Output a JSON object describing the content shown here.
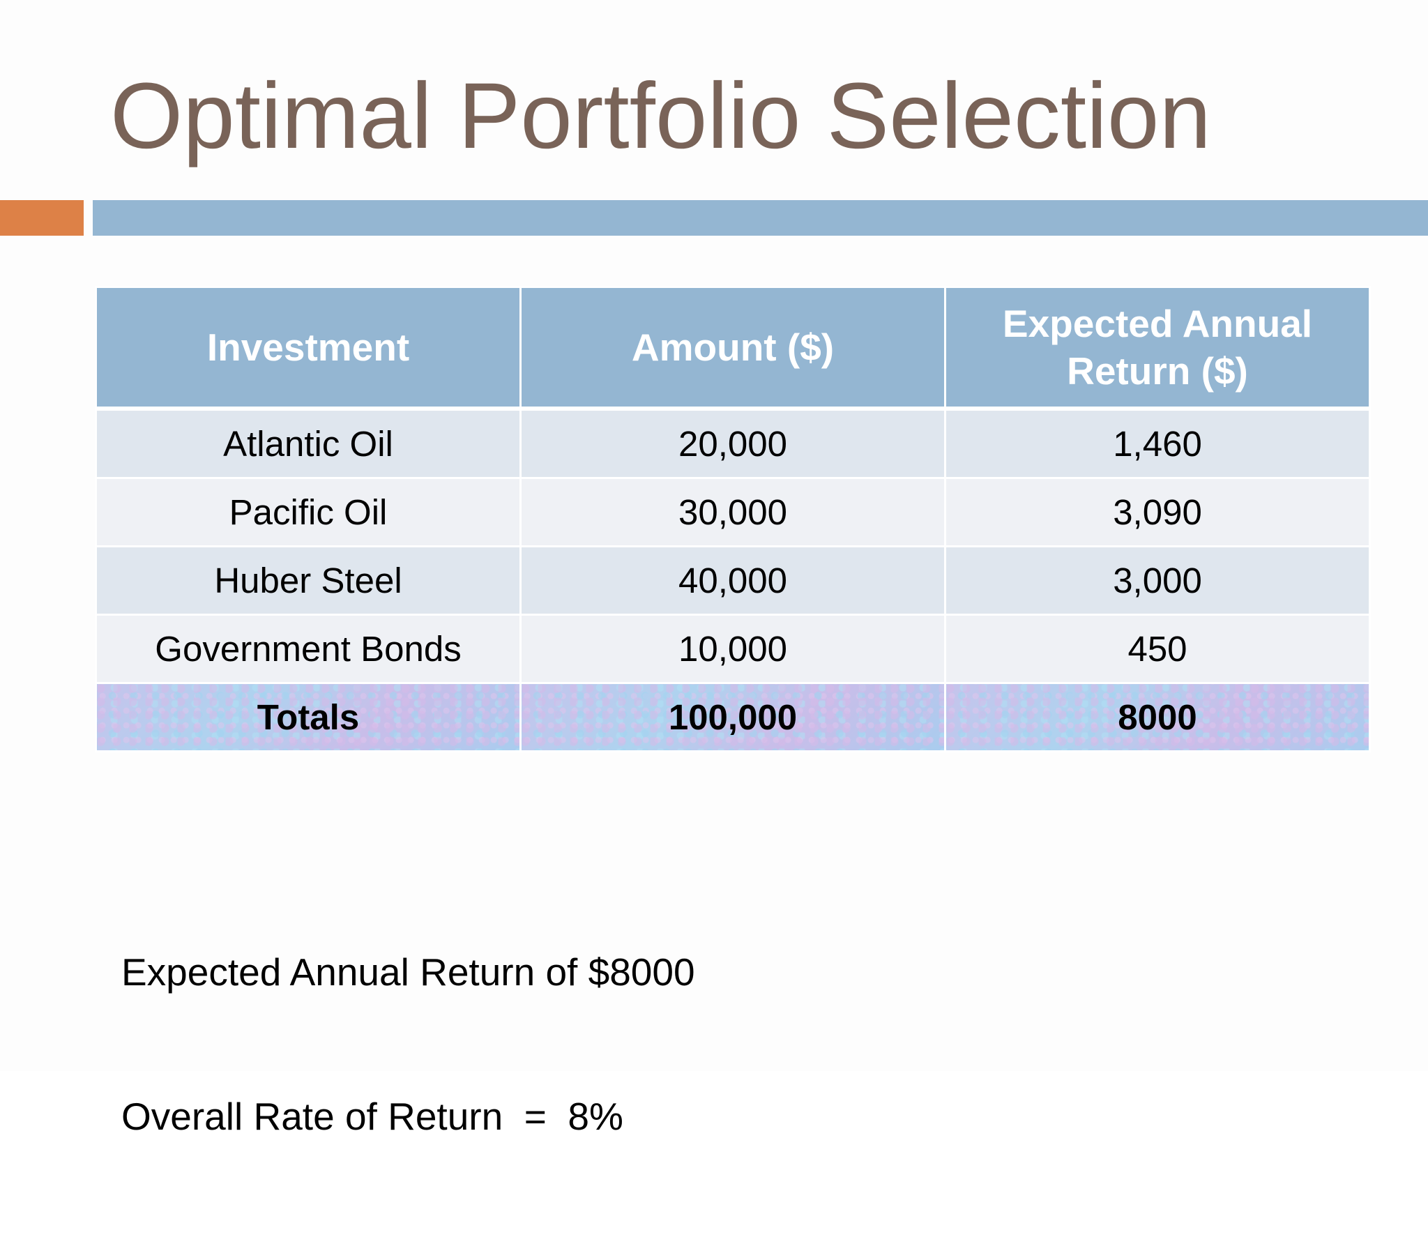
{
  "slide": {
    "title": "Optimal Portfolio Selection",
    "colors": {
      "title": "#796358",
      "accent_orange": "#dd8147",
      "accent_blue": "#94b6d2",
      "header_fill": "#94b6d2",
      "row_odd": "#dfe6ee",
      "row_even": "#eff1f5"
    }
  },
  "table": {
    "headers": [
      "Investment",
      "Amount ($)",
      "Expected Annual Return ($)"
    ],
    "rows": [
      {
        "investment": "Atlantic Oil",
        "amount": "20,000",
        "return": "1,460"
      },
      {
        "investment": "Pacific Oil",
        "amount": "30,000",
        "return": "3,090"
      },
      {
        "investment": "Huber Steel",
        "amount": "40,000",
        "return": "3,000"
      },
      {
        "investment": "Government Bonds",
        "amount": "10,000",
        "return": "450"
      }
    ],
    "totals": {
      "label": "Totals",
      "amount": "100,000",
      "return": "8000"
    }
  },
  "summary": {
    "line1": "Expected Annual Return of $8000",
    "line2": "Overall Rate of Return  =  8%"
  }
}
